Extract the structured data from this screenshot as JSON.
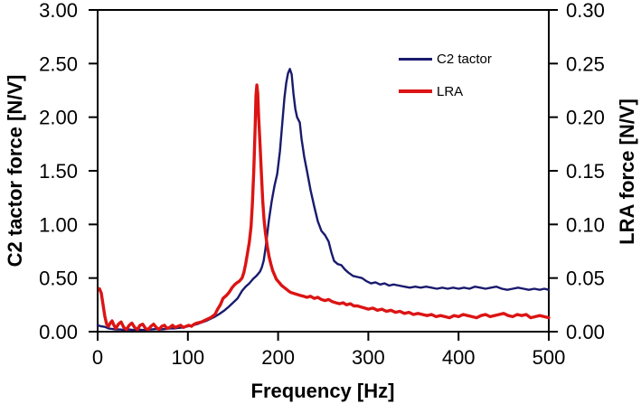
{
  "chart_data": {
    "type": "line",
    "title": "",
    "xlabel": "Frequency [Hz]",
    "ylabel_left": "C2 tactor force [N/V]",
    "ylabel_right": "LRA force [N/V]",
    "xlim": [
      0,
      500
    ],
    "ylim_left": [
      0,
      3.0
    ],
    "ylim_right": [
      0,
      0.3
    ],
    "grid": false,
    "legend_position": "upper-right-inside",
    "x_ticks": [
      {
        "v": 0,
        "label": "0"
      },
      {
        "v": 100,
        "label": "100"
      },
      {
        "v": 200,
        "label": "200"
      },
      {
        "v": 300,
        "label": "300"
      },
      {
        "v": 400,
        "label": "400"
      },
      {
        "v": 500,
        "label": "500"
      }
    ],
    "y_left_ticks": [
      {
        "v": 0.0,
        "label": "0.00"
      },
      {
        "v": 0.5,
        "label": "0.50"
      },
      {
        "v": 1.0,
        "label": "1.00"
      },
      {
        "v": 1.5,
        "label": "1.50"
      },
      {
        "v": 2.0,
        "label": "2.00"
      },
      {
        "v": 2.5,
        "label": "2.50"
      },
      {
        "v": 3.0,
        "label": "3.00"
      }
    ],
    "y_right_ticks": [
      {
        "v": 0.0,
        "label": "0.00"
      },
      {
        "v": 0.05,
        "label": "0.05"
      },
      {
        "v": 0.1,
        "label": "0.10"
      },
      {
        "v": 0.15,
        "label": "0.15"
      },
      {
        "v": 0.2,
        "label": "0.20"
      },
      {
        "v": 0.25,
        "label": "0.25"
      },
      {
        "v": 0.3,
        "label": "0.30"
      }
    ],
    "series": [
      {
        "name": "C2 tactor",
        "axis": "left",
        "color": "#1a1a6e",
        "width": 2.4,
        "peak": {
          "frequency_hz": 213,
          "value": 2.45
        },
        "points": [
          [
            0,
            0.06
          ],
          [
            4,
            0.05
          ],
          [
            8,
            0.045
          ],
          [
            12,
            0.03
          ],
          [
            16,
            0.025
          ],
          [
            20,
            0.02
          ],
          [
            25,
            0.02
          ],
          [
            30,
            0.015
          ],
          [
            35,
            0.02
          ],
          [
            40,
            0.015
          ],
          [
            45,
            0.02
          ],
          [
            50,
            0.015
          ],
          [
            55,
            0.02
          ],
          [
            60,
            0.02
          ],
          [
            65,
            0.025
          ],
          [
            70,
            0.02
          ],
          [
            75,
            0.025
          ],
          [
            80,
            0.03
          ],
          [
            85,
            0.03
          ],
          [
            90,
            0.035
          ],
          [
            95,
            0.04
          ],
          [
            100,
            0.05
          ],
          [
            105,
            0.06
          ],
          [
            110,
            0.07
          ],
          [
            115,
            0.085
          ],
          [
            120,
            0.1
          ],
          [
            125,
            0.12
          ],
          [
            130,
            0.14
          ],
          [
            135,
            0.165
          ],
          [
            140,
            0.195
          ],
          [
            145,
            0.23
          ],
          [
            150,
            0.27
          ],
          [
            155,
            0.31
          ],
          [
            160,
            0.38
          ],
          [
            164,
            0.42
          ],
          [
            168,
            0.45
          ],
          [
            172,
            0.49
          ],
          [
            176,
            0.52
          ],
          [
            180,
            0.56
          ],
          [
            182,
            0.6
          ],
          [
            184,
            0.66
          ],
          [
            186,
            0.77
          ],
          [
            188,
            0.91
          ],
          [
            190,
            1.05
          ],
          [
            193,
            1.22
          ],
          [
            196,
            1.36
          ],
          [
            199,
            1.47
          ],
          [
            202,
            1.68
          ],
          [
            205,
            1.98
          ],
          [
            207,
            2.18
          ],
          [
            209,
            2.32
          ],
          [
            211,
            2.41
          ],
          [
            213,
            2.45
          ],
          [
            215,
            2.4
          ],
          [
            217,
            2.22
          ],
          [
            219,
            2.08
          ],
          [
            221,
            2.0
          ],
          [
            224,
            1.95
          ],
          [
            226,
            1.8
          ],
          [
            229,
            1.63
          ],
          [
            232,
            1.5
          ],
          [
            236,
            1.32
          ],
          [
            240,
            1.17
          ],
          [
            244,
            1.03
          ],
          [
            248,
            0.94
          ],
          [
            252,
            0.9
          ],
          [
            256,
            0.84
          ],
          [
            259,
            0.74
          ],
          [
            262,
            0.66
          ],
          [
            266,
            0.63
          ],
          [
            270,
            0.62
          ],
          [
            274,
            0.58
          ],
          [
            278,
            0.55
          ],
          [
            283,
            0.52
          ],
          [
            288,
            0.51
          ],
          [
            293,
            0.5
          ],
          [
            298,
            0.47
          ],
          [
            303,
            0.45
          ],
          [
            308,
            0.46
          ],
          [
            313,
            0.44
          ],
          [
            318,
            0.45
          ],
          [
            323,
            0.43
          ],
          [
            328,
            0.44
          ],
          [
            334,
            0.43
          ],
          [
            340,
            0.42
          ],
          [
            346,
            0.41
          ],
          [
            352,
            0.42
          ],
          [
            358,
            0.41
          ],
          [
            364,
            0.42
          ],
          [
            370,
            0.41
          ],
          [
            376,
            0.4
          ],
          [
            382,
            0.41
          ],
          [
            388,
            0.4
          ],
          [
            394,
            0.41
          ],
          [
            400,
            0.4
          ],
          [
            406,
            0.41
          ],
          [
            412,
            0.4
          ],
          [
            418,
            0.42
          ],
          [
            424,
            0.41
          ],
          [
            430,
            0.4
          ],
          [
            436,
            0.41
          ],
          [
            442,
            0.42
          ],
          [
            448,
            0.4
          ],
          [
            454,
            0.39
          ],
          [
            460,
            0.4
          ],
          [
            466,
            0.41
          ],
          [
            472,
            0.4
          ],
          [
            478,
            0.39
          ],
          [
            484,
            0.4
          ],
          [
            490,
            0.39
          ],
          [
            495,
            0.4
          ],
          [
            500,
            0.39
          ]
        ]
      },
      {
        "name": "LRA",
        "axis": "right",
        "color": "#dc1414",
        "width": 3.4,
        "peak": {
          "frequency_hz": 176,
          "value": 0.23
        },
        "points": [
          [
            2,
            0.04
          ],
          [
            4,
            0.036
          ],
          [
            6,
            0.025
          ],
          [
            8,
            0.014
          ],
          [
            10,
            0.007
          ],
          [
            12,
            0.005
          ],
          [
            14,
            0.008
          ],
          [
            16,
            0.01
          ],
          [
            18,
            0.006
          ],
          [
            20,
            0.003
          ],
          [
            23,
            0.007
          ],
          [
            26,
            0.009
          ],
          [
            29,
            0.004
          ],
          [
            32,
            0.002
          ],
          [
            35,
            0.006
          ],
          [
            38,
            0.008
          ],
          [
            41,
            0.004
          ],
          [
            44,
            0.002
          ],
          [
            47,
            0.006
          ],
          [
            50,
            0.007
          ],
          [
            53,
            0.003
          ],
          [
            56,
            0.002
          ],
          [
            59,
            0.005
          ],
          [
            62,
            0.007
          ],
          [
            65,
            0.004
          ],
          [
            68,
            0.002
          ],
          [
            71,
            0.005
          ],
          [
            74,
            0.006
          ],
          [
            77,
            0.003
          ],
          [
            80,
            0.004
          ],
          [
            83,
            0.006
          ],
          [
            86,
            0.004
          ],
          [
            89,
            0.005
          ],
          [
            92,
            0.006
          ],
          [
            95,
            0.004
          ],
          [
            98,
            0.005
          ],
          [
            101,
            0.006
          ],
          [
            104,
            0.005
          ],
          [
            107,
            0.007
          ],
          [
            110,
            0.008
          ],
          [
            115,
            0.009
          ],
          [
            120,
            0.011
          ],
          [
            125,
            0.013
          ],
          [
            130,
            0.016
          ],
          [
            133,
            0.021
          ],
          [
            136,
            0.025
          ],
          [
            139,
            0.031
          ],
          [
            143,
            0.034
          ],
          [
            146,
            0.037
          ],
          [
            149,
            0.041
          ],
          [
            152,
            0.044
          ],
          [
            155,
            0.046
          ],
          [
            157,
            0.047
          ],
          [
            160,
            0.05
          ],
          [
            162,
            0.055
          ],
          [
            164,
            0.063
          ],
          [
            166,
            0.073
          ],
          [
            168,
            0.083
          ],
          [
            170,
            0.098
          ],
          [
            171.5,
            0.12
          ],
          [
            173,
            0.15
          ],
          [
            174.5,
            0.19
          ],
          [
            175.5,
            0.22
          ],
          [
            176.5,
            0.23
          ],
          [
            177.5,
            0.222
          ],
          [
            178.5,
            0.2
          ],
          [
            180,
            0.175
          ],
          [
            181.5,
            0.148
          ],
          [
            183,
            0.122
          ],
          [
            184.5,
            0.104
          ],
          [
            186,
            0.092
          ],
          [
            188,
            0.08
          ],
          [
            190,
            0.07
          ],
          [
            192,
            0.063
          ],
          [
            194,
            0.057
          ],
          [
            196,
            0.053
          ],
          [
            198,
            0.049
          ],
          [
            201,
            0.046
          ],
          [
            204,
            0.043
          ],
          [
            207,
            0.041
          ],
          [
            210,
            0.039
          ],
          [
            213,
            0.037
          ],
          [
            216,
            0.036
          ],
          [
            220,
            0.035
          ],
          [
            224,
            0.034
          ],
          [
            228,
            0.033
          ],
          [
            232,
            0.032
          ],
          [
            236,
            0.033
          ],
          [
            240,
            0.031
          ],
          [
            244,
            0.032
          ],
          [
            248,
            0.03
          ],
          [
            252,
            0.029
          ],
          [
            256,
            0.03
          ],
          [
            260,
            0.028
          ],
          [
            264,
            0.027
          ],
          [
            268,
            0.026
          ],
          [
            272,
            0.027
          ],
          [
            276,
            0.025
          ],
          [
            280,
            0.026
          ],
          [
            284,
            0.024
          ],
          [
            288,
            0.024
          ],
          [
            292,
            0.023
          ],
          [
            296,
            0.022
          ],
          [
            300,
            0.021
          ],
          [
            305,
            0.022
          ],
          [
            310,
            0.02
          ],
          [
            315,
            0.021
          ],
          [
            320,
            0.019
          ],
          [
            325,
            0.02
          ],
          [
            330,
            0.018
          ],
          [
            335,
            0.019
          ],
          [
            340,
            0.017
          ],
          [
            345,
            0.018
          ],
          [
            350,
            0.016
          ],
          [
            355,
            0.017
          ],
          [
            360,
            0.016
          ],
          [
            365,
            0.015
          ],
          [
            370,
            0.016
          ],
          [
            375,
            0.014
          ],
          [
            380,
            0.015
          ],
          [
            385,
            0.014
          ],
          [
            390,
            0.013
          ],
          [
            395,
            0.015
          ],
          [
            400,
            0.014
          ],
          [
            405,
            0.016
          ],
          [
            410,
            0.015
          ],
          [
            415,
            0.014
          ],
          [
            420,
            0.013
          ],
          [
            425,
            0.015
          ],
          [
            430,
            0.016
          ],
          [
            435,
            0.014
          ],
          [
            440,
            0.015
          ],
          [
            445,
            0.016
          ],
          [
            450,
            0.017
          ],
          [
            455,
            0.015
          ],
          [
            460,
            0.014
          ],
          [
            465,
            0.016
          ],
          [
            470,
            0.015
          ],
          [
            475,
            0.016
          ],
          [
            480,
            0.013
          ],
          [
            485,
            0.014
          ],
          [
            490,
            0.015
          ],
          [
            495,
            0.014
          ],
          [
            500,
            0.013
          ]
        ]
      }
    ]
  }
}
